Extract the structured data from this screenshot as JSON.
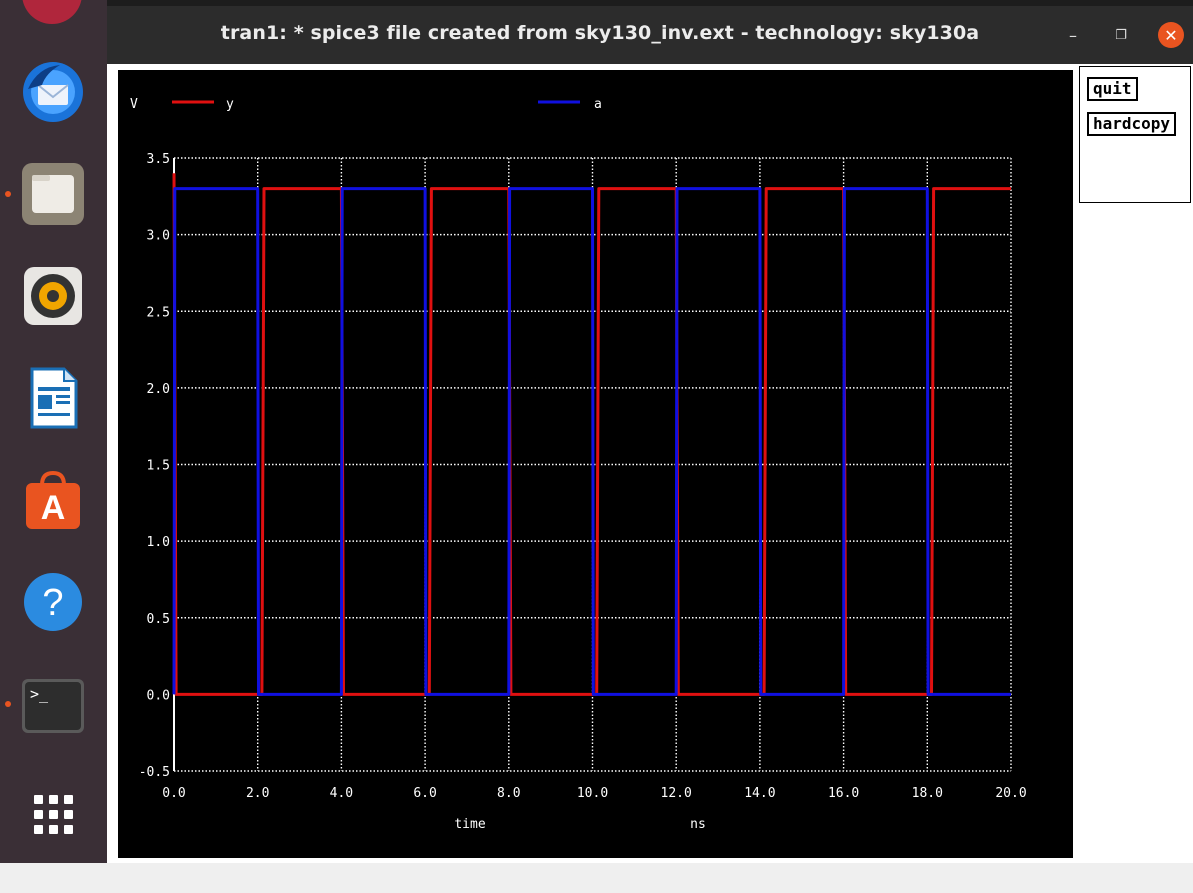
{
  "window": {
    "title": "tran1: * spice3 file created from sky130_inv.ext - technology: sky130a",
    "minimize": "–",
    "maximize": "❐",
    "close": "✕"
  },
  "dock": {
    "items": [
      {
        "name": "thunderbird-icon",
        "running": false
      },
      {
        "name": "files-icon",
        "running": true
      },
      {
        "name": "rhythmbox-icon",
        "running": false
      },
      {
        "name": "libreoffice-writer-icon",
        "running": false
      },
      {
        "name": "software-center-icon",
        "running": false
      },
      {
        "name": "help-icon",
        "running": false
      },
      {
        "name": "terminal-icon",
        "running": true
      },
      {
        "name": "show-apps-icon",
        "running": false
      }
    ],
    "terminal_glyph": ">_",
    "help_glyph": "?",
    "store_glyph": "A"
  },
  "side_panel": {
    "quit_label": "quit",
    "hardcopy_label": "hardcopy"
  },
  "chart_data": {
    "type": "line",
    "ylabel": "V",
    "xlabel": "time",
    "xunit": "ns",
    "xlim": [
      0,
      20
    ],
    "ylim": [
      -0.5,
      3.5
    ],
    "xticks": [
      "0.0",
      "2.0",
      "4.0",
      "6.0",
      "8.0",
      "10.0",
      "12.0",
      "14.0",
      "16.0",
      "18.0",
      "20.0"
    ],
    "yticks": [
      "3.5",
      "3.0",
      "2.5",
      "2.0",
      "1.5",
      "1.0",
      "0.5",
      "0.0",
      "-0.5"
    ],
    "grid": true,
    "legend_position": "top",
    "series": [
      {
        "name": "y",
        "color": "#e01010",
        "x": [
          0.0,
          0.05,
          0.1,
          2.1,
          2.15,
          2.2,
          4.0,
          4.05,
          4.1,
          6.1,
          6.15,
          6.2,
          8.0,
          8.05,
          8.1,
          10.1,
          10.15,
          10.2,
          12.0,
          12.05,
          12.1,
          14.1,
          14.15,
          14.2,
          16.0,
          16.05,
          16.1,
          18.1,
          18.15,
          18.2,
          20.0
        ],
        "y": [
          3.4,
          0.0,
          0.0,
          0.0,
          3.3,
          3.3,
          3.3,
          0.0,
          0.0,
          0.0,
          3.3,
          3.3,
          3.3,
          0.0,
          0.0,
          0.0,
          3.3,
          3.3,
          3.3,
          0.0,
          0.0,
          0.0,
          3.3,
          3.3,
          3.3,
          0.0,
          0.0,
          0.0,
          3.3,
          3.3,
          3.3
        ]
      },
      {
        "name": "a",
        "color": "#1010e0",
        "x": [
          0.0,
          0.02,
          2.0,
          2.02,
          4.0,
          4.02,
          6.0,
          6.02,
          8.0,
          8.02,
          10.0,
          10.02,
          12.0,
          12.02,
          14.0,
          14.02,
          16.0,
          16.02,
          18.0,
          18.02,
          20.0
        ],
        "y": [
          0.0,
          3.3,
          3.3,
          0.0,
          0.0,
          3.3,
          3.3,
          0.0,
          0.0,
          3.3,
          3.3,
          0.0,
          0.0,
          3.3,
          3.3,
          0.0,
          0.0,
          3.3,
          3.3,
          0.0,
          0.0
        ]
      }
    ]
  }
}
